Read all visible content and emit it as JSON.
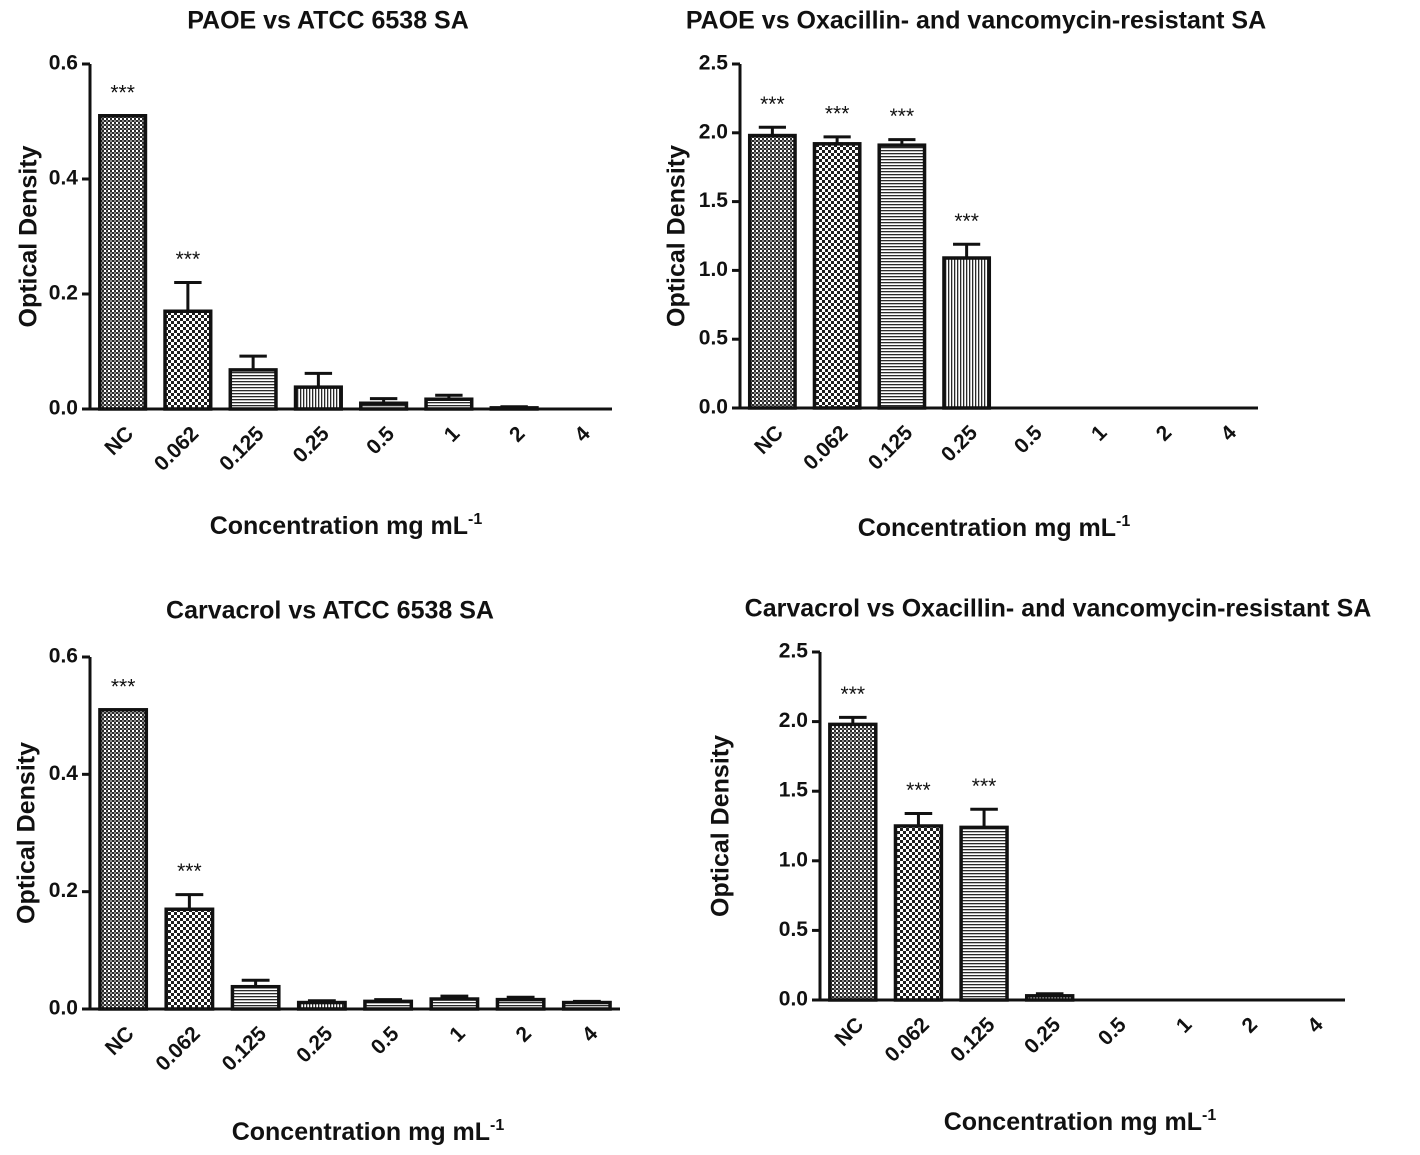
{
  "chart_data": [
    {
      "type": "bar",
      "title": "PAOE vs ATCC 6538 SA",
      "xlabel": "Concentration mg mL",
      "xlabel_superscript": "-1",
      "ylabel": "Optical Density",
      "ylim": [
        0,
        0.6
      ],
      "yticks": [
        "0.0",
        "0.2",
        "0.4",
        "0.6"
      ],
      "categories": [
        "NC",
        "0.062",
        "0.125",
        "0.25",
        "0.5",
        "1",
        "2",
        "4"
      ],
      "values": [
        0.51,
        0.17,
        0.068,
        0.038,
        0.01,
        0.017,
        0.002,
        0
      ],
      "errors": [
        0.0,
        0.05,
        0.024,
        0.024,
        0.008,
        0.007,
        0.002,
        0
      ],
      "significance": [
        "***",
        "***",
        "",
        "",
        "",
        "",
        "",
        ""
      ],
      "patterns": [
        "dense",
        "check",
        "hline",
        "vline",
        "hline",
        "hline",
        "hline",
        "hline"
      ]
    },
    {
      "type": "bar",
      "title": "PAOE vs Oxacillin- and vancomycin-resistant SA",
      "xlabel": "Concentration mg mL",
      "xlabel_superscript": "-1",
      "ylabel": "Optical Density",
      "ylim": [
        0,
        2.5
      ],
      "yticks": [
        "0.0",
        "0.5",
        "1.0",
        "1.5",
        "2.0",
        "2.5"
      ],
      "categories": [
        "NC",
        "0.062",
        "0.125",
        "0.25",
        "0.5",
        "1",
        "2",
        "4"
      ],
      "values": [
        1.98,
        1.92,
        1.91,
        1.09,
        0,
        0,
        0,
        0
      ],
      "errors": [
        0.06,
        0.05,
        0.04,
        0.1,
        0,
        0,
        0,
        0
      ],
      "significance": [
        "***",
        "***",
        "***",
        "***",
        "",
        "",
        "",
        ""
      ],
      "patterns": [
        "dense",
        "check",
        "hline",
        "vline",
        "hline",
        "hline",
        "hline",
        "hline"
      ]
    },
    {
      "type": "bar",
      "title": "Carvacrol vs ATCC 6538 SA",
      "xlabel": "Concentration mg mL",
      "xlabel_superscript": "-1",
      "ylabel": "Optical Density",
      "ylim": [
        0,
        0.6
      ],
      "yticks": [
        "0.0",
        "0.2",
        "0.4",
        "0.6"
      ],
      "categories": [
        "NC",
        "0.062",
        "0.125",
        "0.25",
        "0.5",
        "1",
        "2",
        "4"
      ],
      "values": [
        0.51,
        0.17,
        0.038,
        0.011,
        0.013,
        0.017,
        0.016,
        0.011
      ],
      "errors": [
        0.0,
        0.025,
        0.011,
        0.003,
        0.003,
        0.005,
        0.004,
        0.002
      ],
      "significance": [
        "***",
        "***",
        "",
        "",
        "",
        "",
        "",
        ""
      ],
      "patterns": [
        "dense",
        "check",
        "hline",
        "vline",
        "hline",
        "hline",
        "hline",
        "hline"
      ]
    },
    {
      "type": "bar",
      "title": "Carvacrol vs Oxacillin- and vancomycin-resistant SA",
      "xlabel": "Concentration mg mL",
      "xlabel_superscript": "-1",
      "ylabel": "Optical Density",
      "ylim": [
        0,
        2.5
      ],
      "yticks": [
        "0.0",
        "0.5",
        "1.0",
        "1.5",
        "2.0",
        "2.5"
      ],
      "categories": [
        "NC",
        "0.062",
        "0.125",
        "0.25",
        "0.5",
        "1",
        "2",
        "4"
      ],
      "values": [
        1.98,
        1.25,
        1.24,
        0.03,
        0,
        0,
        0,
        0
      ],
      "errors": [
        0.05,
        0.09,
        0.13,
        0.015,
        0,
        0,
        0,
        0
      ],
      "significance": [
        "***",
        "***",
        "***",
        "",
        "",
        "",
        "",
        ""
      ],
      "patterns": [
        "dense",
        "check",
        "hline",
        "vline",
        "hline",
        "hline",
        "hline",
        "hline"
      ]
    }
  ]
}
